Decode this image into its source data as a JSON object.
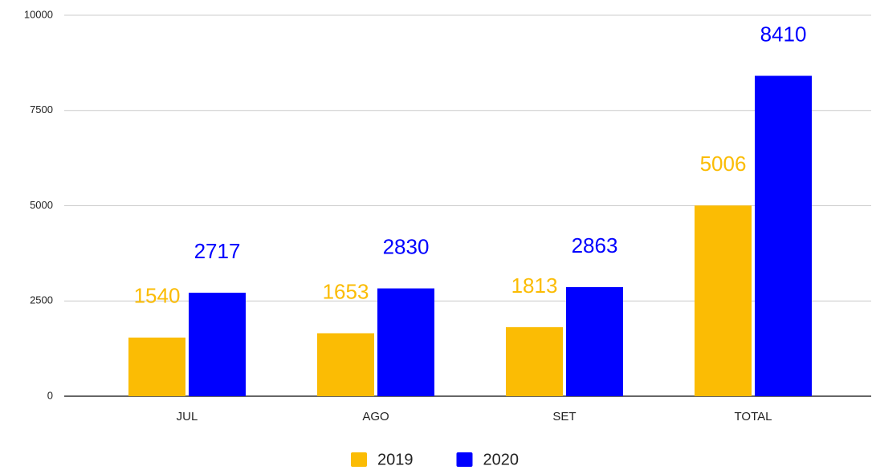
{
  "chart_data": {
    "type": "bar",
    "categories": [
      "JUL",
      "AGO",
      "SET",
      "TOTAL"
    ],
    "series": [
      {
        "name": "2019",
        "color": "#fbbc04",
        "values": [
          1540,
          1653,
          1813,
          5006
        ]
      },
      {
        "name": "2020",
        "color": "#0000ff",
        "values": [
          2717,
          2830,
          2863,
          8410
        ]
      }
    ],
    "ylim": [
      0,
      10000
    ],
    "yticks": [
      0,
      2500,
      5000,
      7500,
      10000
    ],
    "grid": true,
    "legend": "bottom"
  }
}
